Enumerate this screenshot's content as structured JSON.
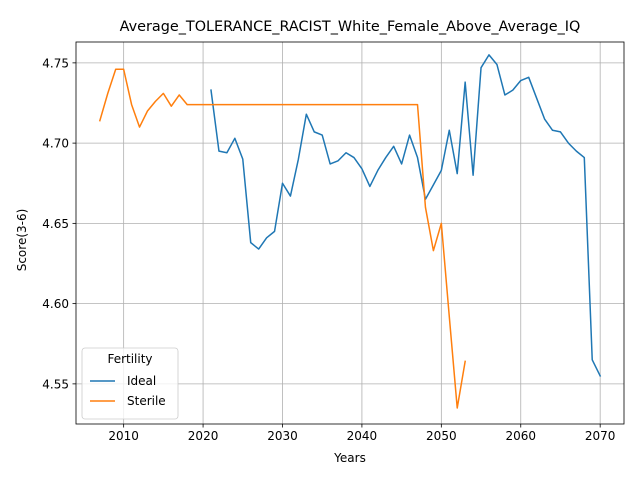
{
  "chart_data": {
    "type": "line",
    "title": "Average_TOLERANCE_RACIST_White_Female_Above_Average_IQ",
    "xlabel": "Years",
    "ylabel": "Score(3-6)",
    "xlim": [
      2004,
      2073
    ],
    "ylim": [
      4.525,
      4.763
    ],
    "x_ticks": [
      2010,
      2020,
      2030,
      2040,
      2050,
      2060,
      2070
    ],
    "y_ticks": [
      4.55,
      4.6,
      4.65,
      4.7,
      4.75
    ],
    "y_tick_labels": [
      "4.55",
      "4.60",
      "4.65",
      "4.70",
      "4.75"
    ],
    "grid": true,
    "legend": {
      "title": "Fertility",
      "placement": "lower-left"
    },
    "series": [
      {
        "name": "Ideal",
        "color": "#1f77b4",
        "x": [
          2021,
          2022,
          2023,
          2024,
          2025,
          2026,
          2027,
          2028,
          2029,
          2030,
          2031,
          2032,
          2033,
          2034,
          2035,
          2036,
          2037,
          2038,
          2039,
          2040,
          2041,
          2042,
          2043,
          2044,
          2045,
          2046,
          2047,
          2048,
          2049,
          2050,
          2051,
          2052,
          2053,
          2054,
          2055,
          2056,
          2057,
          2058,
          2059,
          2060,
          2061,
          2062,
          2063,
          2064,
          2065,
          2066,
          2067,
          2068,
          2069,
          2070
        ],
        "y": [
          4.733,
          4.695,
          4.694,
          4.703,
          4.69,
          4.638,
          4.634,
          4.641,
          4.645,
          4.675,
          4.667,
          4.69,
          4.718,
          4.707,
          4.705,
          4.687,
          4.689,
          4.694,
          4.691,
          4.684,
          4.673,
          4.683,
          4.691,
          4.698,
          4.687,
          4.705,
          4.691,
          4.665,
          4.674,
          4.683,
          4.708,
          4.681,
          4.738,
          4.68,
          4.747,
          4.755,
          4.749,
          4.73,
          4.733,
          4.739,
          4.741,
          4.728,
          4.715,
          4.708,
          4.707,
          4.7,
          4.695,
          4.691,
          4.565,
          4.555
        ]
      },
      {
        "name": "Sterile",
        "color": "#ff7f0e",
        "x": [
          2007,
          2008,
          2009,
          2010,
          2011,
          2012,
          2013,
          2014,
          2015,
          2016,
          2017,
          2018,
          2019,
          2020,
          2021,
          2022,
          2023,
          2024,
          2025,
          2026,
          2027,
          2028,
          2029,
          2030,
          2031,
          2032,
          2033,
          2034,
          2035,
          2036,
          2037,
          2038,
          2039,
          2040,
          2041,
          2042,
          2043,
          2044,
          2045,
          2046,
          2047,
          2048,
          2049,
          2050,
          2051,
          2052,
          2053
        ],
        "y": [
          4.714,
          4.731,
          4.746,
          4.746,
          4.724,
          4.71,
          4.72,
          4.726,
          4.731,
          4.723,
          4.73,
          4.724,
          4.724,
          4.724,
          4.724,
          4.724,
          4.724,
          4.724,
          4.724,
          4.724,
          4.724,
          4.724,
          4.724,
          4.724,
          4.724,
          4.724,
          4.724,
          4.724,
          4.724,
          4.724,
          4.724,
          4.724,
          4.724,
          4.724,
          4.724,
          4.724,
          4.724,
          4.724,
          4.724,
          4.724,
          4.724,
          4.66,
          4.633,
          4.65,
          4.592,
          4.535,
          4.564
        ]
      }
    ]
  }
}
